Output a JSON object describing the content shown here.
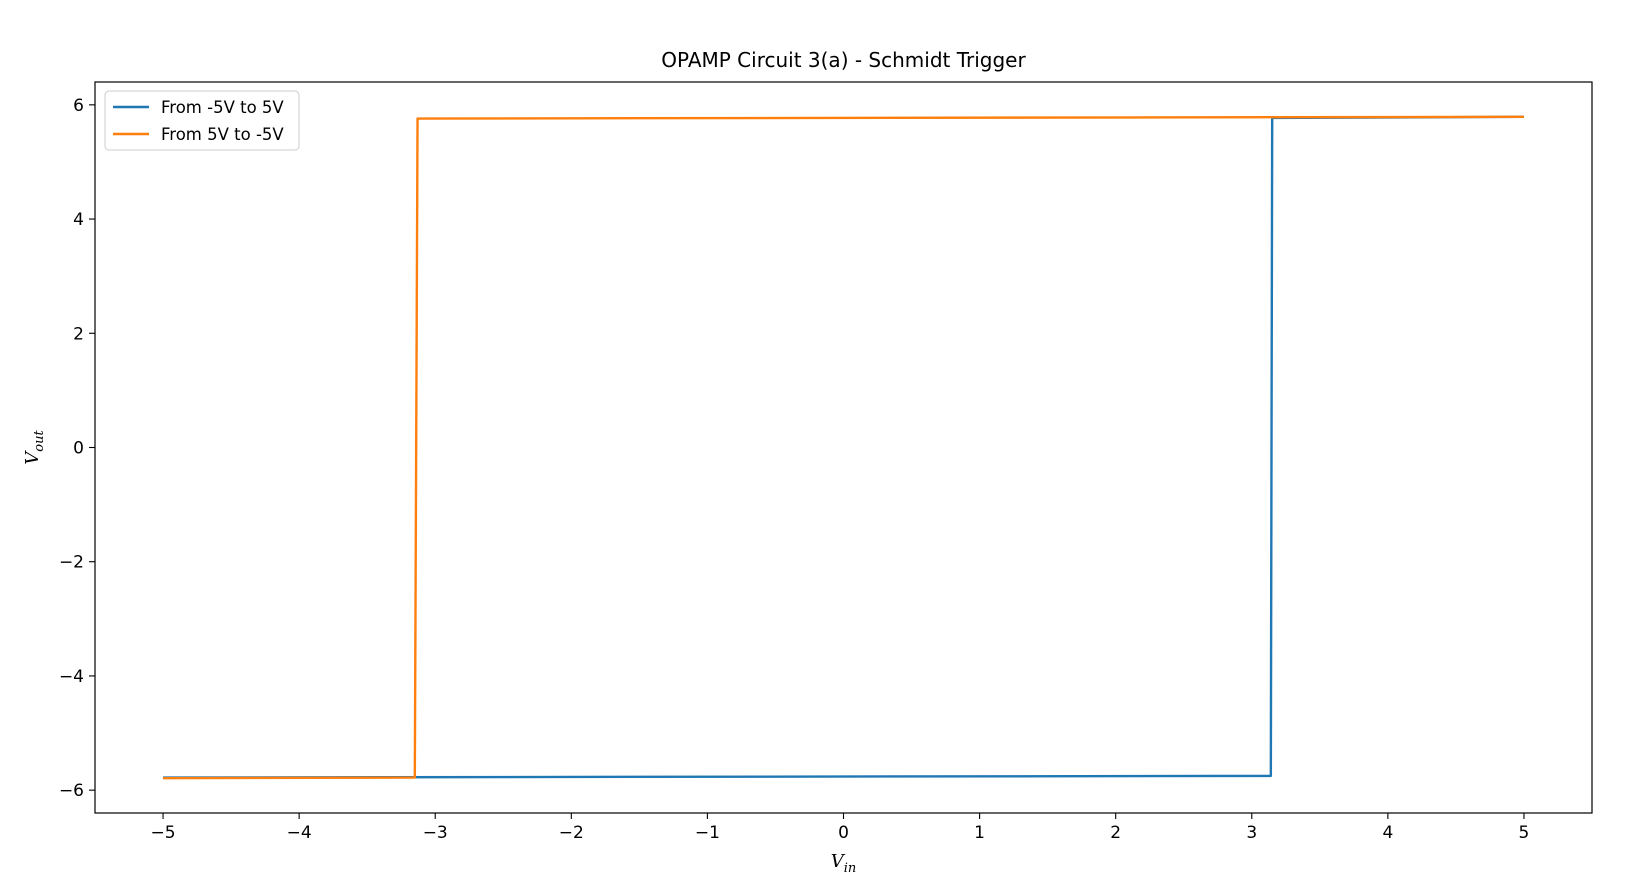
{
  "chart_data": {
    "type": "line",
    "title": "OPAMP Circuit 3(a) - Schmidt Trigger",
    "xlabel": {
      "base": "V",
      "sub": "in"
    },
    "ylabel": {
      "base": "V",
      "sub": "out"
    },
    "xlim": [
      -5.5,
      5.5
    ],
    "ylim": [
      -6.4,
      6.4
    ],
    "xticks": [
      -5,
      -4,
      -3,
      -2,
      -1,
      0,
      1,
      2,
      3,
      4,
      5
    ],
    "yticks": [
      -6,
      -4,
      -2,
      0,
      2,
      4,
      6
    ],
    "grid": false,
    "legend_position": "upper-left",
    "series": [
      {
        "name": "From -5V to 5V",
        "color": "#1f77b4",
        "points": [
          [
            -5,
            -5.78
          ],
          [
            3.14,
            -5.75
          ],
          [
            3.15,
            5.77
          ],
          [
            5,
            5.79
          ]
        ]
      },
      {
        "name": "From 5V to -5V",
        "color": "#ff7f0e",
        "points": [
          [
            5,
            5.79
          ],
          [
            -3.13,
            5.76
          ],
          [
            -3.15,
            -5.78
          ],
          [
            -5,
            -5.79
          ]
        ]
      }
    ]
  }
}
